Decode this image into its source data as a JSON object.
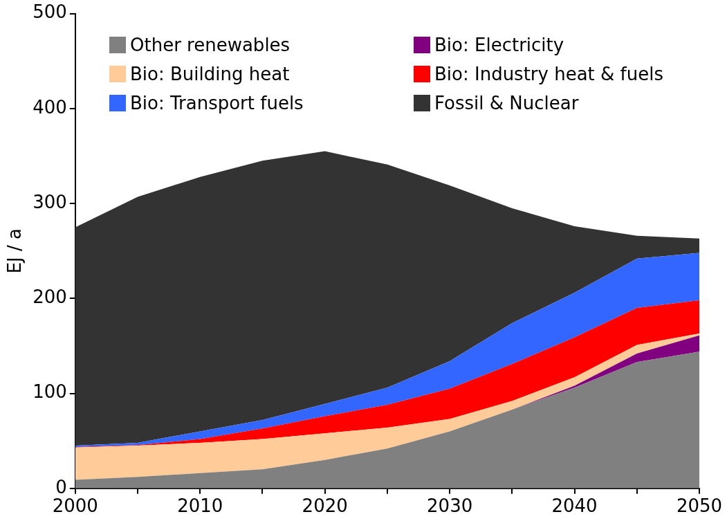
{
  "chart_data": {
    "type": "area",
    "stacked": true,
    "ylabel": "EJ / a",
    "x": [
      2000,
      2005,
      2010,
      2015,
      2020,
      2025,
      2030,
      2035,
      2040,
      2045,
      2050
    ],
    "xlim": [
      2000,
      2050
    ],
    "xticks": [
      2000,
      {
        "value": 2005,
        "label": null
      },
      2010,
      {
        "value": 2015,
        "label": null
      },
      2020,
      {
        "value": 2025,
        "label": null
      },
      2030,
      {
        "value": 2035,
        "label": null
      },
      2040,
      {
        "value": 2045,
        "label": null
      },
      2050
    ],
    "ylim": [
      0,
      500
    ],
    "yticks": [
      0,
      100,
      200,
      300,
      400,
      500
    ],
    "grid": false,
    "legend": "top",
    "series": [
      {
        "name": "Other renewables",
        "color": "#808080",
        "values": [
          9,
          12,
          16,
          20,
          30,
          42,
          60,
          83,
          106,
          133,
          144
        ]
      },
      {
        "name": "Bio: Electricity",
        "color": "#800080",
        "values": [
          0,
          0,
          0,
          0,
          0,
          0,
          0,
          0,
          2,
          9,
          17
        ]
      },
      {
        "name": "Bio: Building heat",
        "color": "#ffcc99",
        "values": [
          34,
          33,
          32,
          32,
          28,
          22,
          13,
          9,
          9,
          9,
          2
        ]
      },
      {
        "name": "Bio: Industry heat & fuels",
        "color": "#ff0000",
        "values": [
          0.5,
          0.5,
          4,
          11,
          18,
          24,
          32,
          39,
          42,
          39,
          35
        ]
      },
      {
        "name": "Bio: Transport fuels",
        "color": "#3366ff",
        "values": [
          1.5,
          2.5,
          8,
          9,
          13,
          18,
          29,
          43,
          47,
          52,
          50
        ]
      },
      {
        "name": "Fossil & Nuclear",
        "color": "#333333",
        "values": [
          230,
          259,
          268,
          273,
          266,
          235,
          185,
          121,
          70,
          24,
          15
        ]
      }
    ]
  }
}
